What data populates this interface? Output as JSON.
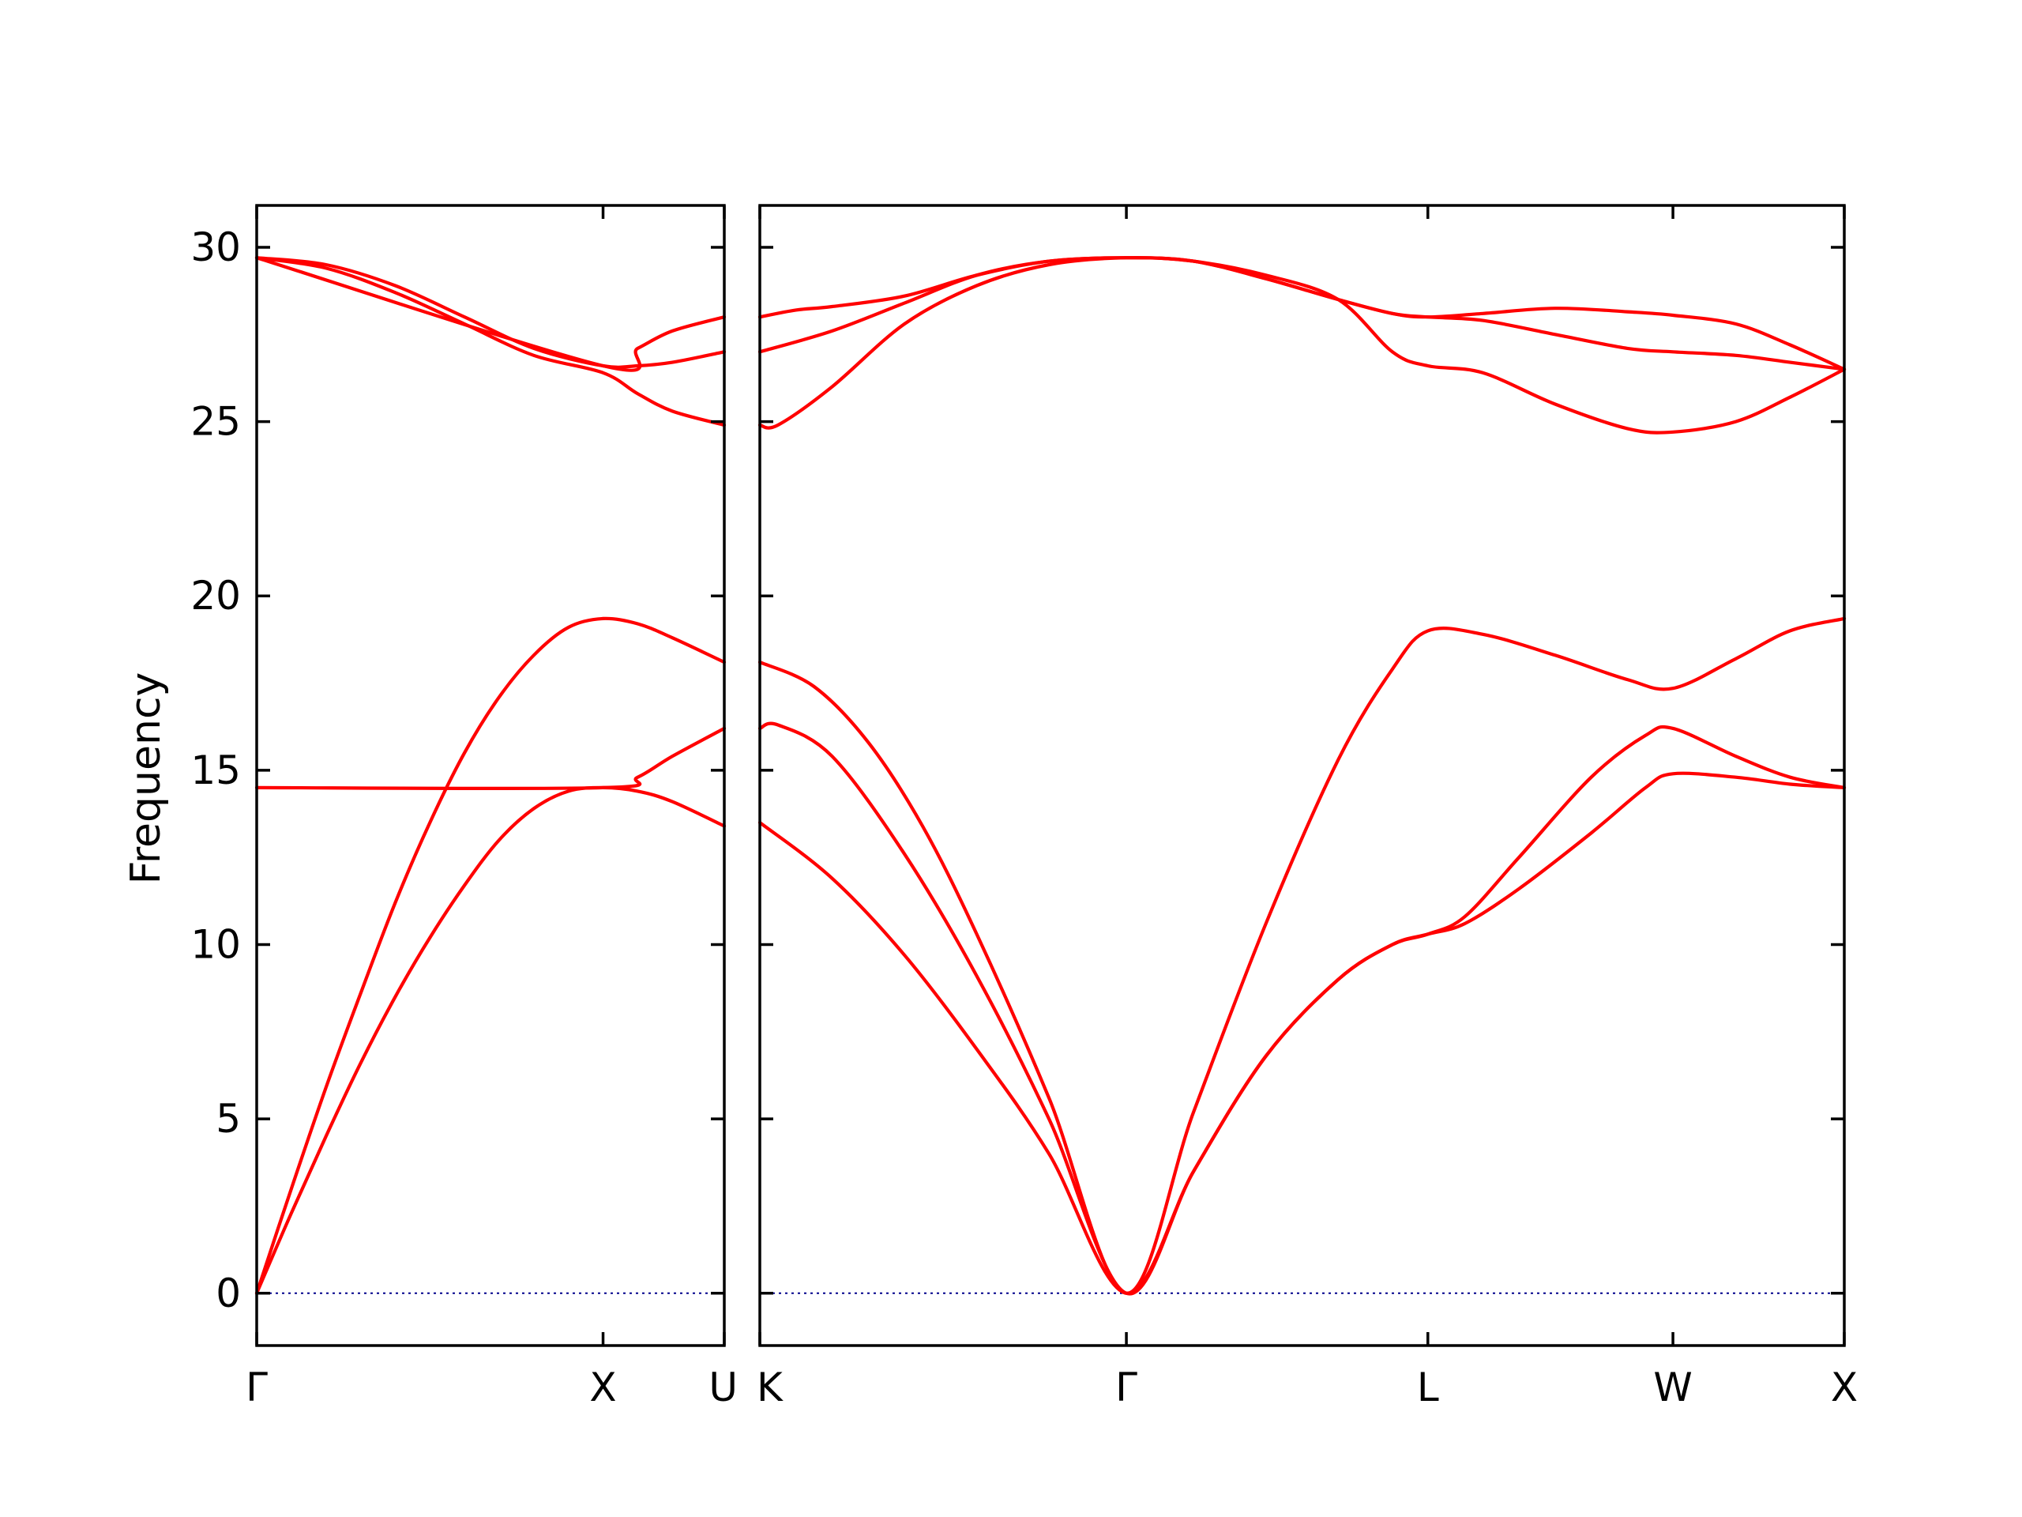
{
  "chart_data": {
    "type": "line",
    "ylabel": "Frequency",
    "ylim": [
      -1.5,
      31.2
    ],
    "yticks": [
      0,
      5,
      10,
      15,
      20,
      25,
      30
    ],
    "colors": {
      "bands": "#ff0000",
      "zero_line": "#00008b"
    },
    "panels": [
      {
        "xlim": [
          0,
          1.35
        ],
        "x_labels": [
          {
            "x": 0,
            "label": "Γ"
          },
          {
            "x": 1.0,
            "label": "X"
          },
          {
            "x": 1.35,
            "label": "U"
          }
        ],
        "series": [
          {
            "x": [
              0,
              0.1,
              0.2,
              0.3,
              0.4,
              0.5,
              0.6,
              0.7,
              0.8,
              0.9,
              1.0,
              1.1,
              1.2,
              1.35
            ],
            "y": [
              0,
              2.3,
              4.5,
              6.6,
              8.5,
              10.2,
              11.7,
              13.0,
              13.9,
              14.4,
              14.5,
              14.4,
              14.1,
              13.4
            ]
          },
          {
            "x": [
              0,
              0.1,
              0.2,
              0.3,
              0.4,
              0.5,
              0.6,
              0.7,
              0.8,
              0.9,
              1.0,
              1.1,
              1.2,
              1.35
            ],
            "y": [
              0,
              3.0,
              5.9,
              8.6,
              11.2,
              13.5,
              15.5,
              17.1,
              18.3,
              19.1,
              19.35,
              19.2,
              18.8,
              18.1
            ]
          },
          {
            "x": [
              0,
              1.0,
              1.1,
              1.2,
              1.35
            ],
            "y": [
              14.5,
              14.5,
              14.8,
              15.4,
              16.2
            ]
          },
          {
            "x": [
              0,
              0.2,
              0.4,
              0.6,
              0.8,
              1.0,
              1.1,
              1.2,
              1.35
            ],
            "y": [
              29.7,
              29.4,
              28.7,
              27.8,
              26.9,
              26.4,
              25.8,
              25.3,
              24.9
            ]
          },
          {
            "x": [
              0,
              0.2,
              0.4,
              0.6,
              0.8,
              1.0,
              1.1,
              1.2,
              1.35
            ],
            "y": [
              29.7,
              29.5,
              28.9,
              28.0,
              27.1,
              26.6,
              26.6,
              26.7,
              27.0
            ]
          },
          {
            "x": [
              0,
              1.0,
              1.1,
              1.2,
              1.35
            ],
            "y": [
              29.7,
              26.6,
              27.1,
              27.6,
              28.0
            ]
          }
        ]
      },
      {
        "xlim": [
          0,
          3.0
        ],
        "x_labels": [
          {
            "x": 0,
            "label": "K"
          },
          {
            "x": 1.014,
            "label": "Γ"
          },
          {
            "x": 1.848,
            "label": "L"
          },
          {
            "x": 2.526,
            "label": "W"
          },
          {
            "x": 3.0,
            "label": "X"
          }
        ],
        "series": [
          {
            "x": [
              0,
              0.2,
              0.4,
              0.6,
              0.8,
              1.014,
              1.2,
              1.4,
              1.6,
              1.75,
              1.848,
              1.95,
              2.1,
              2.3,
              2.45,
              2.526,
              2.7,
              2.85,
              3.0
            ],
            "y": [
              13.5,
              11.9,
              9.7,
              7.0,
              4.0,
              0,
              3.5,
              6.8,
              9.0,
              10.0,
              10.3,
              10.6,
              11.6,
              13.2,
              14.5,
              14.9,
              14.8,
              14.6,
              14.5
            ]
          },
          {
            "x": [
              0,
              0.05,
              0.2,
              0.4,
              0.6,
              0.8,
              1.014,
              1.2,
              1.4,
              1.6,
              1.75,
              1.848,
              1.95,
              2.1,
              2.3,
              2.45,
              2.526,
              2.7,
              2.85,
              3.0
            ],
            "y": [
              16.2,
              16.3,
              15.4,
              12.6,
              9.1,
              5.0,
              0,
              3.5,
              6.8,
              9.0,
              10.0,
              10.3,
              10.8,
              12.5,
              14.8,
              16.0,
              16.2,
              15.4,
              14.8,
              14.5
            ]
          },
          {
            "x": [
              0,
              0.15,
              0.3,
              0.45,
              0.6,
              0.8,
              1.014,
              1.2,
              1.4,
              1.6,
              1.75,
              1.848,
              2.0,
              2.2,
              2.4,
              2.526,
              2.7,
              2.85,
              3.0
            ],
            "y": [
              18.1,
              17.4,
              15.8,
              13.4,
              10.3,
              5.6,
              0,
              5.2,
              10.6,
              15.3,
              17.9,
              19.0,
              18.9,
              18.3,
              17.6,
              17.35,
              18.2,
              19.0,
              19.35
            ]
          },
          {
            "x": [
              0,
              0.05,
              0.2,
              0.4,
              0.6,
              0.8,
              1.014,
              1.2,
              1.4,
              1.6,
              1.75,
              1.848,
              2.0,
              2.2,
              2.4,
              2.526,
              2.7,
              2.85,
              3.0
            ],
            "y": [
              24.9,
              24.9,
              26.0,
              27.8,
              28.9,
              29.5,
              29.7,
              29.6,
              29.2,
              28.5,
              27.0,
              26.6,
              26.4,
              25.5,
              24.8,
              24.7,
              25.0,
              25.7,
              26.5
            ]
          },
          {
            "x": [
              0,
              0.2,
              0.4,
              0.6,
              0.8,
              1.014,
              1.2,
              1.4,
              1.6,
              1.75,
              1.848,
              2.0,
              2.2,
              2.4,
              2.526,
              2.7,
              2.85,
              3.0
            ],
            "y": [
              27.0,
              27.6,
              28.4,
              29.2,
              29.6,
              29.7,
              29.6,
              29.1,
              28.5,
              28.1,
              28.0,
              27.9,
              27.5,
              27.1,
              27.0,
              26.9,
              26.7,
              26.5
            ]
          },
          {
            "x": [
              0,
              0.1,
              0.2,
              0.4,
              0.6,
              0.8,
              1.014,
              1.2,
              1.4,
              1.6,
              1.75,
              1.848,
              2.0,
              2.2,
              2.4,
              2.526,
              2.7,
              2.85,
              3.0
            ],
            "y": [
              28.0,
              28.2,
              28.3,
              28.6,
              29.2,
              29.6,
              29.7,
              29.6,
              29.1,
              28.5,
              28.1,
              28.0,
              28.1,
              28.25,
              28.15,
              28.05,
              27.8,
              27.2,
              26.5
            ]
          }
        ]
      }
    ]
  }
}
